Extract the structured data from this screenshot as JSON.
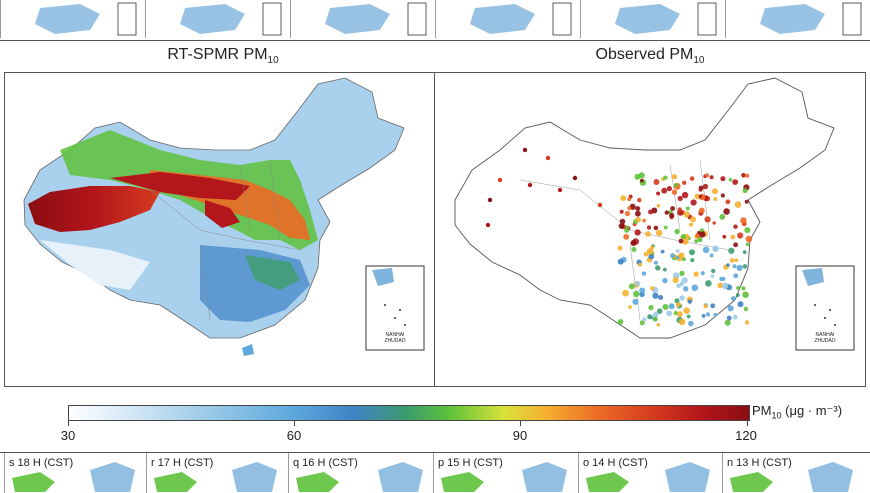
{
  "panels": {
    "left_title": "RT-SPMR PM",
    "left_sub": "10",
    "right_title": "Observed PM",
    "right_sub": "10",
    "inset_text_line1": "NANHAI",
    "inset_text_line2": "ZHUDAO"
  },
  "colorbar": {
    "ticks": [
      "30",
      "60",
      "90",
      "120"
    ],
    "unit_prefix": "PM",
    "unit_sub": "10",
    "unit_suffix": " (μg · m⁻³)"
  },
  "bottom_strip": {
    "labels": [
      "s 18 H (CST)",
      "r 17 H (CST)",
      "q 16 H (CST)",
      "p 15 H (CST)",
      "o 14 H (CST)",
      "n 13 H (CST)"
    ]
  },
  "colors": {
    "low": "#ffffff",
    "mid": "#3f82c4",
    "green": "#5ec23a",
    "yellow": "#d8e23a",
    "orange": "#ec6a25",
    "high": "#8b0d12"
  }
}
